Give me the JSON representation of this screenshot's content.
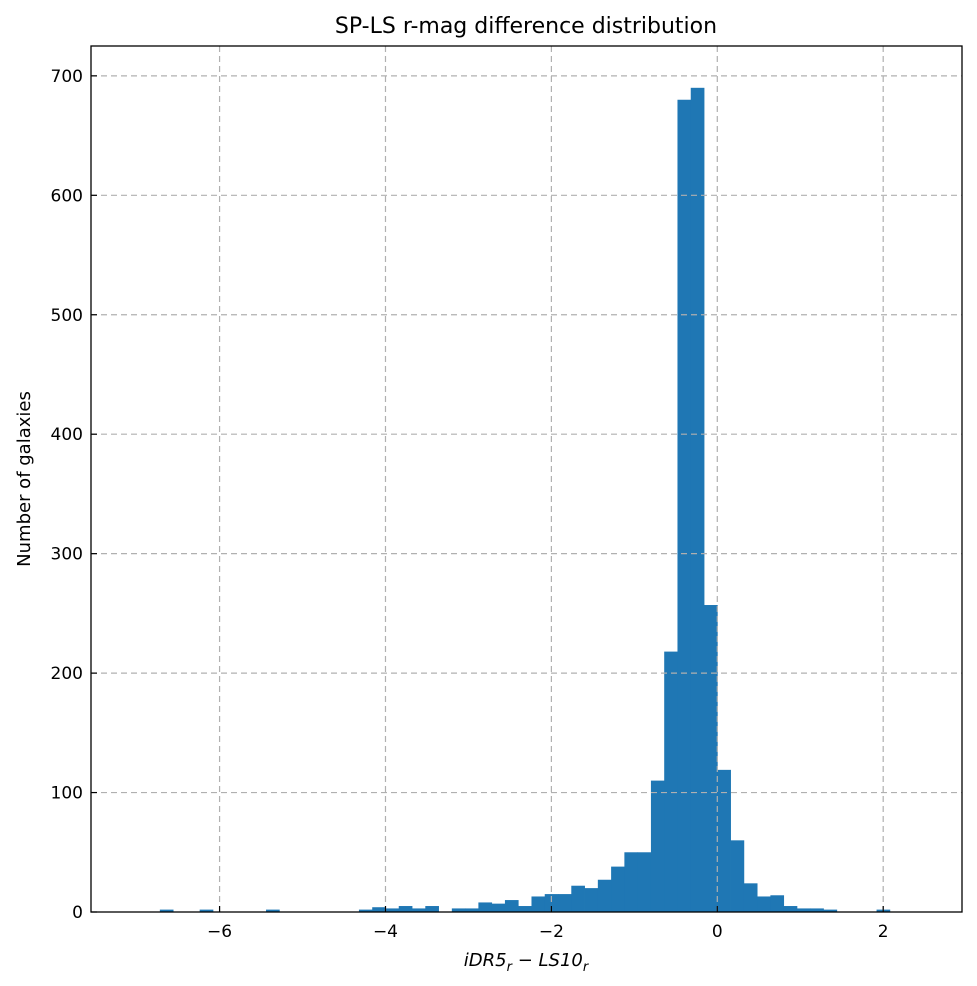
{
  "chart_data": {
    "type": "bar",
    "title": "SP-LS r-mag difference distribution",
    "xlabel_parts": [
      "iDR5",
      "r",
      " − LS10",
      "r"
    ],
    "ylabel": "Number of galaxies",
    "xlim": [
      -7.55,
      2.95
    ],
    "ylim": [
      0,
      725
    ],
    "xticks": [
      -6,
      -4,
      -2,
      0,
      2
    ],
    "xtick_labels": [
      "−6",
      "−4",
      "−2",
      "0",
      "2"
    ],
    "yticks": [
      0,
      100,
      200,
      300,
      400,
      500,
      600,
      700
    ],
    "ytick_labels": [
      "0",
      "100",
      "200",
      "300",
      "400",
      "500",
      "600",
      "700"
    ],
    "grid": true,
    "bin_start": -7.2,
    "bin_width": 0.16,
    "values": [
      0,
      0,
      0,
      2,
      0,
      0,
      2,
      0,
      0,
      0,
      0,
      2,
      0,
      0,
      0,
      0,
      0,
      0,
      2,
      4,
      3,
      5,
      3,
      5,
      0,
      3,
      3,
      8,
      7,
      10,
      5,
      13,
      15,
      15,
      22,
      20,
      27,
      38,
      50,
      50,
      110,
      218,
      680,
      690,
      257,
      119,
      60,
      24,
      13,
      14,
      5,
      3,
      3,
      2,
      0,
      0,
      0,
      2,
      0
    ]
  }
}
